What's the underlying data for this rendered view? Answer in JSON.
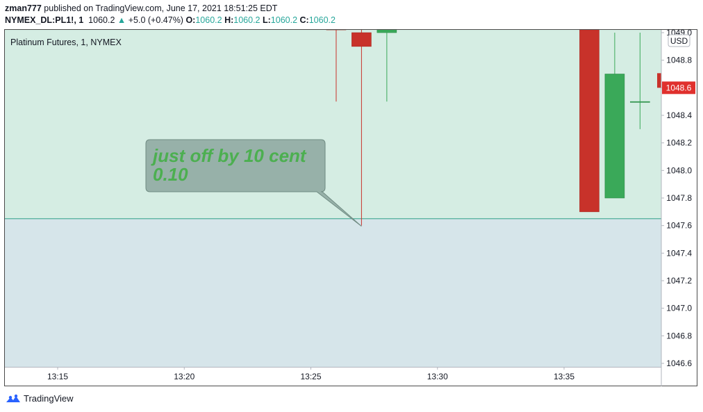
{
  "header": {
    "user": "zman777",
    "published_text": "published on TradingView.com, June 17, 2021 18:51:25 EDT",
    "symbol": "NYMEX_DL:PL1!, 1",
    "price": "1060.2",
    "change_arrow": "▲",
    "change": "+5.0 (+0.47%)",
    "o_label": "O:",
    "o_value": "1060.2",
    "h_label": "H:",
    "h_value": "1060.2",
    "l_label": "L:",
    "l_value": "1060.2",
    "c_label": "C:",
    "c_value": "1060.2"
  },
  "footer": {
    "brand": "TradingView",
    "logo_icon": "tradingview-logo-icon"
  },
  "colors": {
    "up": "#3aa959",
    "down": "#c8322a",
    "zone_upper": "#d5ede3",
    "zone_lower": "#d6e5ea",
    "price_badge": "#e0302d",
    "annotation_bg": "#8ea9a0"
  },
  "chart_data": {
    "type": "candlestick",
    "title": "Platinum Futures, 1, NYMEX",
    "currency_label": "USD",
    "ylim": [
      1046.55,
      1049.05
    ],
    "y_ticks": [
      "1049.0",
      "1048.8",
      "1048.6",
      "1048.4",
      "1048.2",
      "1048.0",
      "1047.8",
      "1047.6",
      "1047.4",
      "1047.2",
      "1047.0",
      "1046.8",
      "1046.6"
    ],
    "x_ticks": [
      "13:15",
      "13:20",
      "13:25",
      "13:30",
      "13:35"
    ],
    "x_tick_minutes": [
      795,
      800,
      805,
      810,
      815
    ],
    "xlim_minutes": [
      791.2,
      817.5
    ],
    "candles": [
      {
        "time": "13:26",
        "minute": 806,
        "open": 1049.05,
        "close": 1049.02,
        "high": 1049.05,
        "low": 1048.5
      },
      {
        "time": "13:27",
        "minute": 807,
        "open": 1049.0,
        "close": 1048.9,
        "high": 1049.05,
        "low": 1047.6
      },
      {
        "time": "13:28",
        "minute": 808,
        "open": 1049.0,
        "close": 1049.03,
        "high": 1049.05,
        "low": 1048.5
      },
      {
        "time": "13:36",
        "minute": 816,
        "open": 1049.05,
        "close": 1047.7,
        "high": 1049.05,
        "low": 1047.7
      },
      {
        "time": "13:37",
        "minute": 817,
        "open": 1047.8,
        "close": 1048.7,
        "high": 1049.0,
        "low": 1047.8
      },
      {
        "time": "13:38",
        "minute": 818,
        "open": 1048.5,
        "close": 1048.5,
        "high": 1049.0,
        "low": 1048.3
      }
    ],
    "last_price": "1048.6",
    "zone_boundary": 1047.65,
    "annotation": {
      "lines": [
        "just off by 10 cent",
        "0.10"
      ],
      "target_minute": 807,
      "target_price": 1047.6
    }
  }
}
